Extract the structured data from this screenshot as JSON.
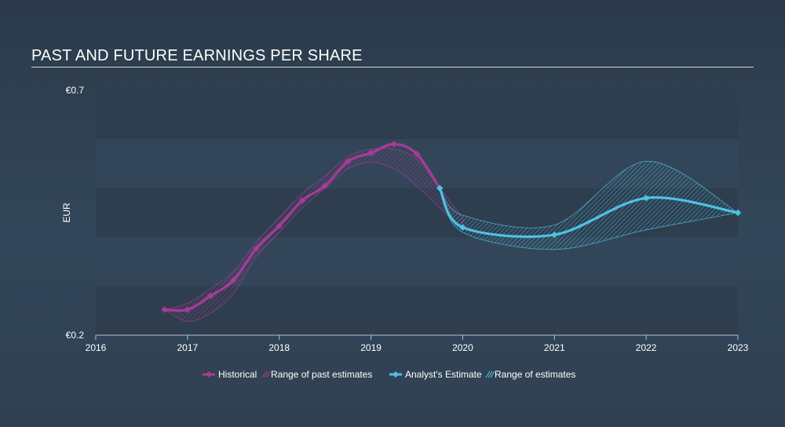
{
  "title": "PAST AND FUTURE EARNINGS PER SHARE",
  "chart_data": {
    "type": "line",
    "title": "PAST AND FUTURE EARNINGS PER SHARE",
    "xlabel": "",
    "ylabel": "EUR",
    "ylim": [
      0.2,
      0.7
    ],
    "xlim": [
      2016,
      2023.0
    ],
    "y_tick_labels": [
      {
        "value": 0.7,
        "label": "€0.7"
      },
      {
        "value": 0.2,
        "label": "€0.2"
      }
    ],
    "x_ticks": [
      2016,
      2017,
      2018,
      2019,
      2020,
      2021,
      2022,
      2023
    ],
    "colors": {
      "historical": "#a93a97",
      "historical_range": "#a93a97",
      "estimate": "#4ec2e2",
      "estimate_range": "#4ec2e2"
    },
    "series": [
      {
        "name": "Historical",
        "x": [
          2016.75,
          2017.0,
          2017.25,
          2017.5,
          2017.75,
          2018.0,
          2018.25,
          2018.5,
          2018.75,
          2019.0,
          2019.25,
          2019.5,
          2019.75
        ],
        "values": [
          0.252,
          0.252,
          0.28,
          0.312,
          0.377,
          0.423,
          0.475,
          0.505,
          0.555,
          0.572,
          0.59,
          0.57,
          0.5
        ]
      },
      {
        "name": "Analyst's Estimate",
        "x": [
          2019.75,
          2020.0,
          2021.0,
          2022.0,
          2023.0
        ],
        "values": [
          0.5,
          0.42,
          0.405,
          0.48,
          0.45
        ]
      }
    ],
    "ranges": [
      {
        "name": "Range of past estimates",
        "x": [
          2016.75,
          2017.0,
          2017.25,
          2017.5,
          2017.75,
          2018.0,
          2018.25,
          2018.5,
          2018.75,
          2019.0,
          2019.25,
          2019.5,
          2019.75,
          2020.0
        ],
        "low": [
          0.252,
          0.228,
          0.245,
          0.285,
          0.36,
          0.41,
          0.46,
          0.5,
          0.54,
          0.553,
          0.54,
          0.505,
          0.46,
          0.415
        ],
        "high": [
          0.252,
          0.265,
          0.295,
          0.33,
          0.39,
          0.44,
          0.49,
          0.525,
          0.565,
          0.58,
          0.58,
          0.56,
          0.5,
          0.44
        ]
      },
      {
        "name": "Range of estimates",
        "x": [
          2019.75,
          2020.0,
          2021.0,
          2022.0,
          2023.0
        ],
        "low": [
          0.5,
          0.41,
          0.375,
          0.415,
          0.45
        ],
        "high": [
          0.5,
          0.445,
          0.425,
          0.555,
          0.45
        ]
      }
    ],
    "legend": {
      "position": "bottom-center",
      "items": [
        "Historical",
        "Range of past estimates",
        "Analyst's Estimate",
        "Range of estimates"
      ]
    }
  }
}
